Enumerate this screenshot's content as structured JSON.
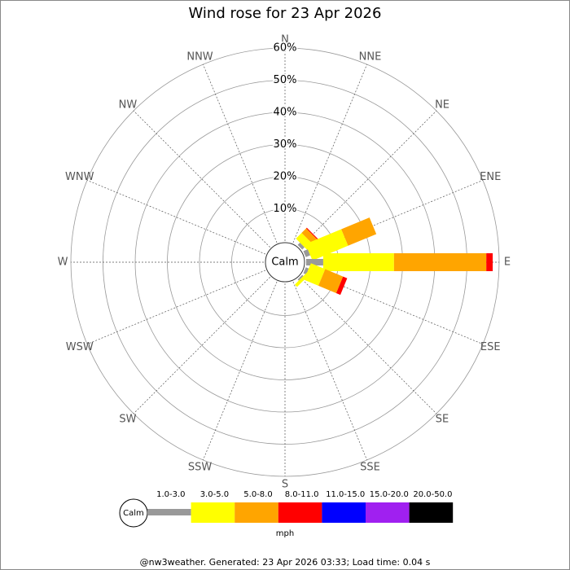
{
  "chart_data": {
    "type": "windrose",
    "title": "Wind rose for 23 Apr 2026",
    "calm_label": "Calm",
    "unit_label": "mph",
    "footer": "@nw3weather. Generated: 23 Apr 2026 03:33; Load time: 0.04 s",
    "categories": [
      "N",
      "NNE",
      "NE",
      "ENE",
      "E",
      "ESE",
      "SE",
      "SSE",
      "S",
      "SSW",
      "SW",
      "WSW",
      "W",
      "WNW",
      "NW",
      "NNW"
    ],
    "rlim": [
      0,
      60
    ],
    "rticks": [
      {
        "value": 10,
        "label": "10%"
      },
      {
        "value": 20,
        "label": "20%"
      },
      {
        "value": 30,
        "label": "30%"
      },
      {
        "value": 40,
        "label": "40%"
      },
      {
        "value": 50,
        "label": "50%"
      },
      {
        "value": 60,
        "label": "60%"
      }
    ],
    "series": [
      {
        "name": "1.0-3.0",
        "color": "#999999",
        "values": [
          0,
          0,
          1,
          1.5,
          5.3,
          1,
          0.5,
          0,
          0,
          0,
          0,
          0,
          0,
          0,
          0,
          0
        ]
      },
      {
        "name": "3.0-5.0",
        "color": "#ffff00",
        "values": [
          0,
          0,
          2.5,
          12,
          22,
          4.8,
          1,
          0,
          0,
          0,
          0,
          0,
          0,
          0,
          0,
          0
        ]
      },
      {
        "name": "5.0-8.0",
        "color": "#ffa500",
        "values": [
          0,
          0,
          2,
          9.5,
          28.7,
          6,
          0,
          0,
          0,
          0,
          0,
          0,
          0,
          0,
          0,
          0
        ]
      },
      {
        "name": "8.0-11.0",
        "color": "#ff0000",
        "values": [
          0,
          0,
          0.3,
          0,
          2,
          1.4,
          0,
          0,
          0,
          0,
          0,
          0,
          0,
          0,
          0,
          0
        ]
      },
      {
        "name": "11.0-15.0",
        "color": "#0000ff",
        "values": [
          0,
          0,
          0,
          0,
          0,
          0,
          0,
          0,
          0,
          0,
          0,
          0,
          0,
          0,
          0,
          0
        ]
      },
      {
        "name": "15.0-20.0",
        "color": "#a020f0",
        "values": [
          0,
          0,
          0,
          0,
          0,
          0,
          0,
          0,
          0,
          0,
          0,
          0,
          0,
          0,
          0,
          0
        ]
      },
      {
        "name": "20.0-50.0",
        "color": "#000000",
        "values": [
          0,
          0,
          0,
          0,
          0,
          0,
          0,
          0,
          0,
          0,
          0,
          0,
          0,
          0,
          0,
          0
        ]
      }
    ]
  }
}
